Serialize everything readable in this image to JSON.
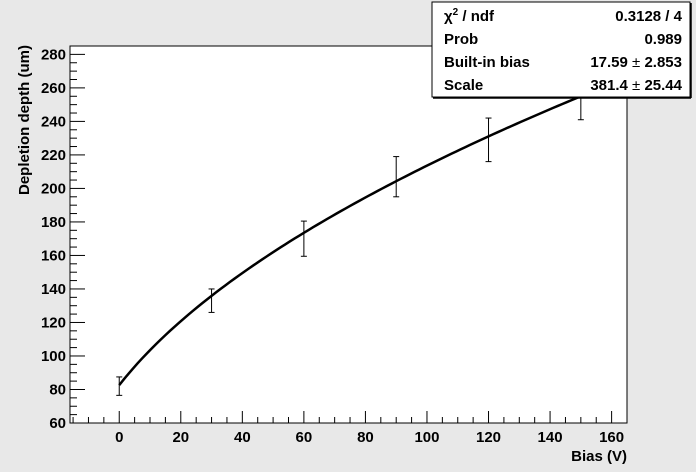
{
  "chart_data": {
    "type": "scatter",
    "xlabel": "Bias (V)",
    "ylabel": "Depletion depth (um)",
    "xlim": [
      -16,
      165
    ],
    "ylim": [
      60,
      285
    ],
    "xticks": [
      0,
      20,
      40,
      60,
      80,
      100,
      120,
      140,
      160
    ],
    "yticks": [
      60,
      80,
      100,
      120,
      140,
      160,
      180,
      200,
      220,
      240,
      260,
      280
    ],
    "points": [
      {
        "x": 0,
        "y": 82,
        "err": 5.5
      },
      {
        "x": 30,
        "y": 133,
        "err": 7
      },
      {
        "x": 60,
        "y": 170,
        "err": 10.5
      },
      {
        "x": 90,
        "y": 207,
        "err": 12
      },
      {
        "x": 120,
        "y": 229,
        "err": 13
      },
      {
        "x": 150,
        "y": 255,
        "err": 14
      }
    ],
    "fit": {
      "built_in_bias": 17.59,
      "scale": 381.4,
      "x_range": [
        0,
        150
      ]
    },
    "marker_color": "#000000",
    "fit_color": "#000000",
    "background": "#e8e8e8",
    "plot_background": "#ffffff"
  },
  "stats_box": {
    "rows": [
      {
        "label_main": "χ",
        "label_sup": "2",
        "label_rest": " / ndf",
        "value_main": "0.3128 / 4",
        "value_pm": "",
        "value_err": ""
      },
      {
        "label_main": "Prob",
        "label_sup": "",
        "label_rest": "",
        "value_main": "0.989",
        "value_pm": "",
        "value_err": ""
      },
      {
        "label_main": "Built-in bias",
        "label_sup": "",
        "label_rest": "",
        "value_main": "17.59",
        "value_pm": "±",
        "value_err": "2.853"
      },
      {
        "label_main": "Scale",
        "label_sup": "",
        "label_rest": "",
        "value_main": "381.4",
        "value_pm": "±",
        "value_err": "25.44"
      }
    ]
  }
}
